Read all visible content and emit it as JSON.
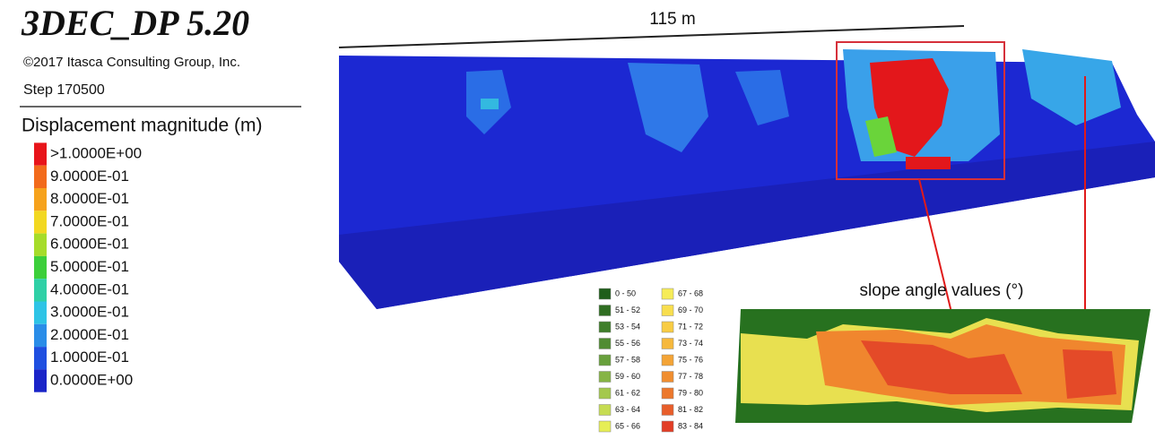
{
  "header": {
    "title": "3DEC_DP 5.20",
    "copyright": "©2017 Itasca Consulting Group, Inc.",
    "step": "Step 170500"
  },
  "displacement_legend": {
    "title": "Displacement magnitude (m)",
    "items": [
      {
        "label": ">1.0000E+00",
        "color": "#e8141a"
      },
      {
        "label": "9.0000E-01",
        "color": "#f26a1b"
      },
      {
        "label": "8.0000E-01",
        "color": "#f6a21c"
      },
      {
        "label": "7.0000E-01",
        "color": "#f2d821"
      },
      {
        "label": "6.0000E-01",
        "color": "#a6dc2a"
      },
      {
        "label": "5.0000E-01",
        "color": "#3ccf3a"
      },
      {
        "label": "4.0000E-01",
        "color": "#2fd0a6"
      },
      {
        "label": "3.0000E-01",
        "color": "#2ec4e6"
      },
      {
        "label": "2.0000E-01",
        "color": "#2a8de8"
      },
      {
        "label": "1.0000E-01",
        "color": "#1f4fe0"
      },
      {
        "label": "0.0000E+00",
        "color": "#1a24c8"
      }
    ]
  },
  "model": {
    "scale_label": "115 m"
  },
  "slope_legend": {
    "title": "slope angle  values (°)",
    "items": [
      {
        "label": "0 - 50",
        "color": "#1f5e1a"
      },
      {
        "label": "51 - 52",
        "color": "#2f6e22"
      },
      {
        "label": "53 - 54",
        "color": "#3f7e2a"
      },
      {
        "label": "55 - 56",
        "color": "#508c32"
      },
      {
        "label": "57 - 58",
        "color": "#68a03c"
      },
      {
        "label": "59 - 60",
        "color": "#86b445"
      },
      {
        "label": "61 - 62",
        "color": "#a4c84e"
      },
      {
        "label": "63 - 64",
        "color": "#c6dc52"
      },
      {
        "label": "65 - 66",
        "color": "#e6ee55"
      },
      {
        "label": "67 - 68",
        "color": "#f6ec58"
      },
      {
        "label": "69 - 70",
        "color": "#f8de4e"
      },
      {
        "label": "71 - 72",
        "color": "#f8cc44"
      },
      {
        "label": "73 - 74",
        "color": "#f6b83c"
      },
      {
        "label": "75 - 76",
        "color": "#f4a436"
      },
      {
        "label": "77 - 78",
        "color": "#f08e30"
      },
      {
        "label": "79 - 80",
        "color": "#ec782c"
      },
      {
        "label": "81 - 82",
        "color": "#e85e2a"
      },
      {
        "label": "83 - 84",
        "color": "#e23e26"
      }
    ]
  }
}
